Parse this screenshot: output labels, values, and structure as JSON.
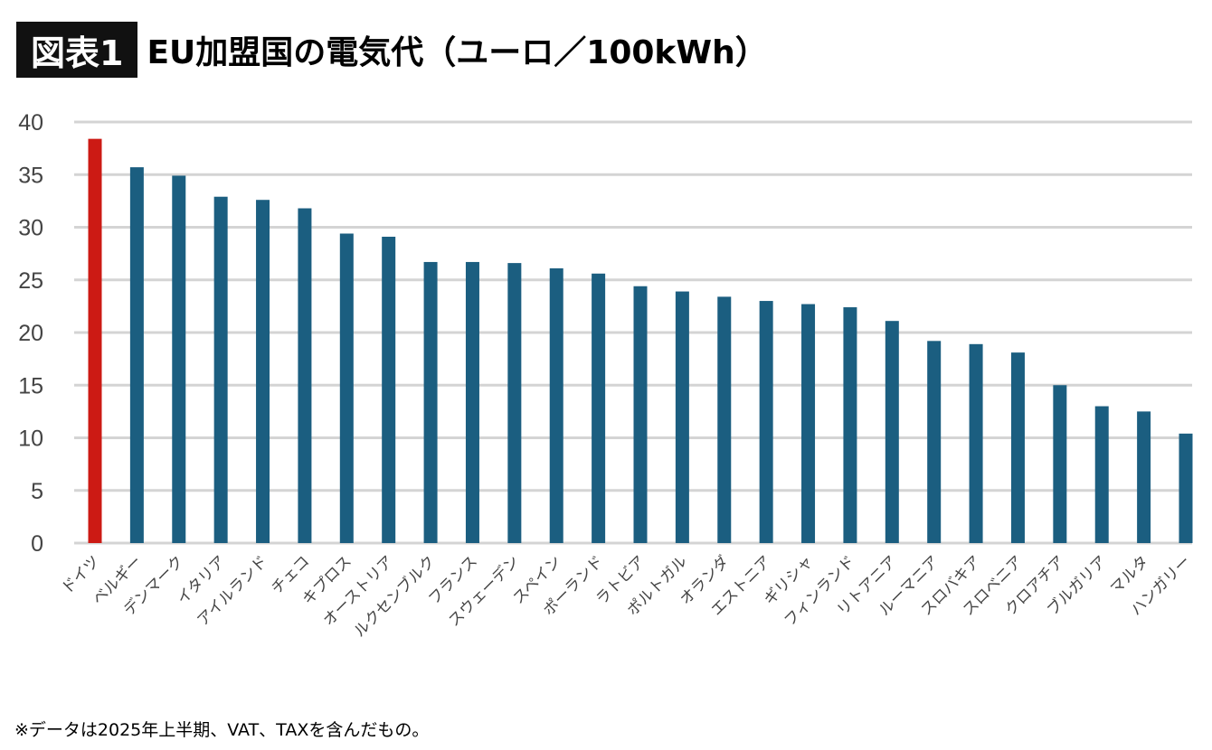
{
  "header": {
    "badge": "図表1",
    "title": "EU加盟国の電気代（ユーロ／100kWh）"
  },
  "footnote": "※データは2025年上半期、VAT、TAXを含んだもの。",
  "colors": {
    "highlight": "#cc1a14",
    "bar": "#1b5e80",
    "grid": "#d4d4d4",
    "axis_text": "#444444"
  },
  "chart_data": {
    "type": "bar",
    "categories": [
      "ドイツ",
      "ベルギー",
      "デンマーク",
      "イタリア",
      "アイルランド",
      "チェコ",
      "キプロス",
      "オーストリア",
      "ルクセンブルク",
      "フランス",
      "スウェーデン",
      "スペイン",
      "ポーランド",
      "ラトビア",
      "ポルトガル",
      "オランダ",
      "エストニア",
      "ギリシャ",
      "フィンランド",
      "リトアニア",
      "ルーマニア",
      "スロバキア",
      "スロベニア",
      "クロアチア",
      "ブルガリア",
      "マルタ",
      "ハンガリー"
    ],
    "values": [
      38.4,
      35.7,
      34.9,
      32.9,
      32.6,
      31.8,
      29.4,
      29.1,
      26.7,
      26.7,
      26.6,
      26.1,
      25.6,
      24.4,
      23.9,
      23.4,
      23.0,
      22.7,
      22.4,
      21.1,
      19.2,
      18.9,
      18.1,
      15.0,
      13.0,
      12.5,
      10.4
    ],
    "highlight_index": 0,
    "ylim": [
      0,
      40
    ],
    "yticks": [
      0,
      5,
      10,
      15,
      20,
      25,
      30,
      35,
      40
    ],
    "grid": true,
    "legend": "none"
  }
}
